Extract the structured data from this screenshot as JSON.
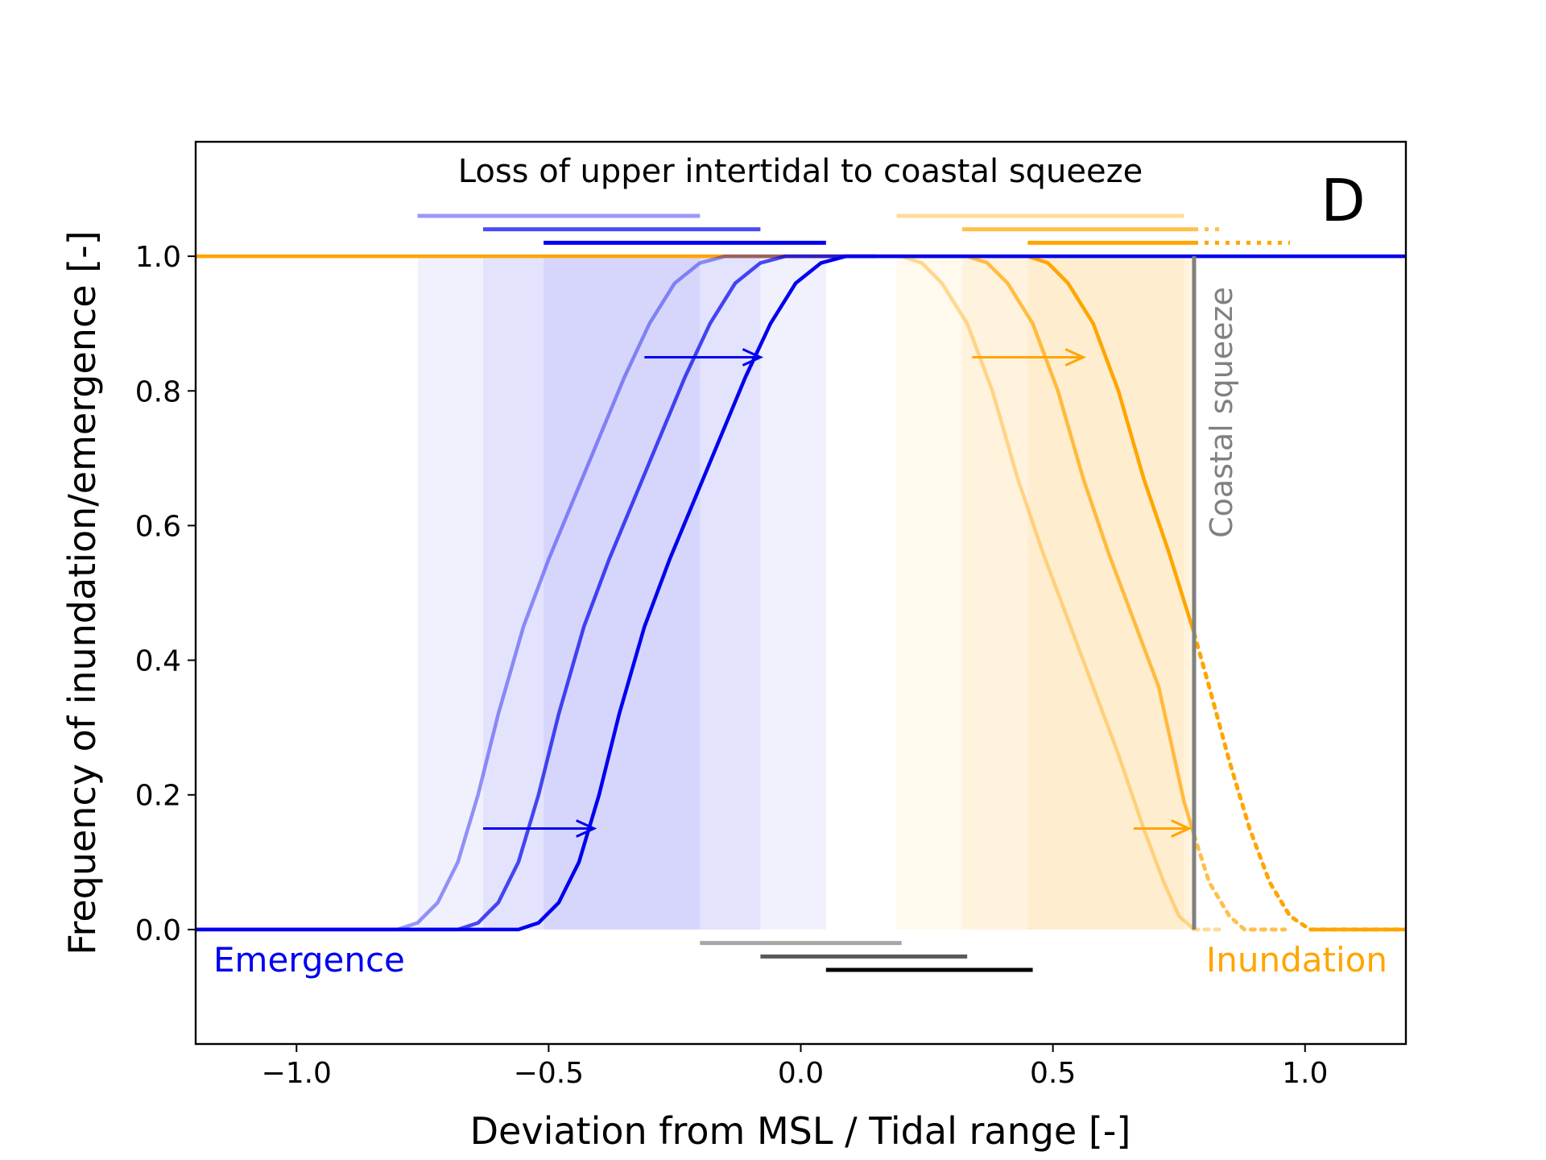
{
  "chart_data": {
    "type": "line",
    "title": "Loss of upper intertidal to coastal squeeze",
    "panel_label": "D",
    "xlabel": "Deviation from MSL / Tidal range [-]",
    "ylabel": "Frequency of inundation/emergence [-]",
    "xlim": [
      -1.2,
      1.2
    ],
    "ylim": [
      -0.17,
      1.17
    ],
    "xticks": [
      -1.0,
      -0.5,
      0.0,
      0.5,
      1.0
    ],
    "xtick_labels": [
      "−1.0",
      "−0.5",
      "0.0",
      "0.5",
      "1.0"
    ],
    "yticks": [
      0.0,
      0.2,
      0.4,
      0.6,
      0.8,
      1.0
    ],
    "ytick_labels": [
      "0.0",
      "0.2",
      "0.4",
      "0.6",
      "0.8",
      "1.0"
    ],
    "grid": false,
    "colors": {
      "emergence": "#0000ee",
      "inundation": "#ffa500",
      "squeeze": "#808080"
    },
    "emergence_label": "Emergence",
    "inundation_label": "Inundation",
    "squeeze_label": "Coastal squeeze",
    "squeeze_x": 0.78,
    "emergence_curves": [
      {
        "opacity": 0.4,
        "points": [
          [
            -1.2,
            0
          ],
          [
            -0.8,
            0
          ],
          [
            -0.76,
            0.01
          ],
          [
            -0.72,
            0.04
          ],
          [
            -0.68,
            0.1
          ],
          [
            -0.64,
            0.2
          ],
          [
            -0.6,
            0.32
          ],
          [
            -0.55,
            0.45
          ],
          [
            -0.5,
            0.55
          ],
          [
            -0.45,
            0.64
          ],
          [
            -0.4,
            0.73
          ],
          [
            -0.35,
            0.82
          ],
          [
            -0.3,
            0.9
          ],
          [
            -0.25,
            0.96
          ],
          [
            -0.2,
            0.99
          ],
          [
            -0.15,
            1.0
          ],
          [
            0.15,
            1.0
          ]
        ]
      },
      {
        "opacity": 0.7,
        "points": [
          [
            -1.2,
            0
          ],
          [
            -0.68,
            0
          ],
          [
            -0.64,
            0.01
          ],
          [
            -0.6,
            0.04
          ],
          [
            -0.56,
            0.1
          ],
          [
            -0.52,
            0.2
          ],
          [
            -0.48,
            0.32
          ],
          [
            -0.43,
            0.45
          ],
          [
            -0.38,
            0.55
          ],
          [
            -0.33,
            0.64
          ],
          [
            -0.28,
            0.73
          ],
          [
            -0.23,
            0.82
          ],
          [
            -0.18,
            0.9
          ],
          [
            -0.13,
            0.96
          ],
          [
            -0.08,
            0.99
          ],
          [
            -0.03,
            1.0
          ],
          [
            0.15,
            1.0
          ]
        ]
      },
      {
        "opacity": 1.0,
        "points": [
          [
            -1.2,
            0
          ],
          [
            -0.56,
            0
          ],
          [
            -0.52,
            0.01
          ],
          [
            -0.48,
            0.04
          ],
          [
            -0.44,
            0.1
          ],
          [
            -0.4,
            0.2
          ],
          [
            -0.36,
            0.32
          ],
          [
            -0.31,
            0.45
          ],
          [
            -0.26,
            0.55
          ],
          [
            -0.21,
            0.64
          ],
          [
            -0.16,
            0.73
          ],
          [
            -0.11,
            0.82
          ],
          [
            -0.06,
            0.9
          ],
          [
            -0.01,
            0.96
          ],
          [
            0.04,
            0.99
          ],
          [
            0.09,
            1.0
          ],
          [
            1.2,
            1.0
          ]
        ]
      }
    ],
    "inundation_curves": [
      {
        "opacity": 0.4,
        "points": [
          [
            0.05,
            1.0
          ],
          [
            0.2,
            1.0
          ],
          [
            0.24,
            0.99
          ],
          [
            0.28,
            0.96
          ],
          [
            0.33,
            0.9
          ],
          [
            0.38,
            0.8
          ],
          [
            0.43,
            0.67
          ],
          [
            0.48,
            0.56
          ],
          [
            0.53,
            0.46
          ],
          [
            0.58,
            0.36
          ],
          [
            0.63,
            0.26
          ],
          [
            0.68,
            0.15
          ],
          [
            0.72,
            0.07
          ],
          [
            0.75,
            0.02
          ],
          [
            0.78,
            0.0
          ]
        ],
        "dotted": [
          [
            0.78,
            0.0
          ],
          [
            0.81,
            0.0
          ],
          [
            0.84,
            0.0
          ]
        ]
      },
      {
        "opacity": 0.7,
        "points": [
          [
            0.05,
            1.0
          ],
          [
            0.33,
            1.0
          ],
          [
            0.37,
            0.99
          ],
          [
            0.41,
            0.96
          ],
          [
            0.46,
            0.9
          ],
          [
            0.51,
            0.8
          ],
          [
            0.56,
            0.67
          ],
          [
            0.61,
            0.56
          ],
          [
            0.66,
            0.46
          ],
          [
            0.71,
            0.36
          ],
          [
            0.76,
            0.19
          ],
          [
            0.78,
            0.14
          ]
        ],
        "dotted": [
          [
            0.78,
            0.14
          ],
          [
            0.81,
            0.07
          ],
          [
            0.85,
            0.02
          ],
          [
            0.88,
            0.0
          ],
          [
            0.96,
            0.0
          ]
        ]
      },
      {
        "opacity": 1.0,
        "points": [
          [
            -1.2,
            1.0
          ],
          [
            0.45,
            1.0
          ],
          [
            0.49,
            0.99
          ],
          [
            0.53,
            0.96
          ],
          [
            0.58,
            0.9
          ],
          [
            0.63,
            0.8
          ],
          [
            0.68,
            0.67
          ],
          [
            0.73,
            0.56
          ],
          [
            0.78,
            0.44
          ]
        ],
        "dotted": [
          [
            0.78,
            0.44
          ],
          [
            0.81,
            0.36
          ],
          [
            0.85,
            0.25
          ],
          [
            0.89,
            0.15
          ],
          [
            0.93,
            0.07
          ],
          [
            0.97,
            0.02
          ],
          [
            1.01,
            0.0
          ],
          [
            1.2,
            0.0
          ]
        ],
        "tail": [
          [
            1.01,
            0.0
          ],
          [
            1.2,
            0.0
          ]
        ]
      }
    ],
    "emergence_bands": [
      {
        "x0": -0.76,
        "x1": -0.2,
        "opacity": 0.4
      },
      {
        "x0": -0.63,
        "x1": -0.08,
        "opacity": 0.7
      },
      {
        "x0": -0.51,
        "x1": 0.05,
        "opacity": 1.0
      }
    ],
    "inundation_bands": [
      {
        "x0": 0.19,
        "x1": 0.76,
        "opacity": 0.4
      },
      {
        "x0": 0.32,
        "x1": 0.78,
        "opacity": 0.7
      },
      {
        "x0": 0.45,
        "x1": 0.78,
        "opacity": 1.0
      }
    ],
    "emergence_bars": [
      {
        "x0": -0.76,
        "x1": -0.2,
        "y": 1.06,
        "opacity": 0.4
      },
      {
        "x0": -0.63,
        "x1": -0.08,
        "y": 1.04,
        "opacity": 0.7
      },
      {
        "x0": -0.51,
        "x1": 0.05,
        "y": 1.02,
        "opacity": 1.0
      }
    ],
    "inundation_bars": [
      {
        "x0": 0.19,
        "x1": 0.76,
        "y": 1.06,
        "opacity": 0.4
      },
      {
        "x0": 0.32,
        "x1": 0.78,
        "y": 1.04,
        "opacity": 0.7,
        "dotted_to": 0.84
      },
      {
        "x0": 0.45,
        "x1": 0.78,
        "y": 1.02,
        "opacity": 1.0,
        "dotted_to": 0.97
      }
    ],
    "intertidal_bars": [
      {
        "x0": -0.2,
        "x1": 0.2,
        "y": -0.02,
        "gray": 0.65
      },
      {
        "x0": -0.08,
        "x1": 0.33,
        "y": -0.04,
        "gray": 0.35
      },
      {
        "x0": 0.05,
        "x1": 0.46,
        "y": -0.06,
        "gray": 0.0
      }
    ],
    "arrows": [
      {
        "x0": -0.63,
        "x1": -0.41,
        "y": 0.15,
        "kind": "emergence"
      },
      {
        "x0": -0.31,
        "x1": -0.08,
        "y": 0.85,
        "kind": "emergence"
      },
      {
        "x0": 0.34,
        "x1": 0.56,
        "y": 0.85,
        "kind": "inundation"
      },
      {
        "x0": 0.66,
        "x1": 0.77,
        "y": 0.15,
        "kind": "inundation"
      }
    ]
  }
}
